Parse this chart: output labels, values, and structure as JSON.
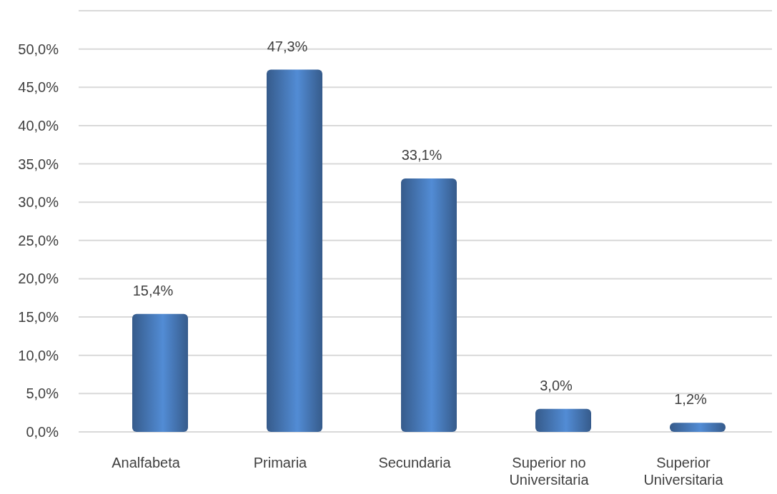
{
  "chart_data": {
    "type": "bar",
    "categories": [
      "Analfabeta",
      "Primaria",
      "Secundaria",
      "Superior no Universitaria",
      "Superior Universitaria"
    ],
    "values": [
      15.4,
      47.3,
      33.1,
      3.0,
      1.2
    ],
    "value_labels": [
      "15,4%",
      "47,3%",
      "33,1%",
      "3,0%",
      "1,2%"
    ],
    "color": "#4a7ebf",
    "ylim": [
      0,
      55
    ],
    "yticks": [
      {
        "value": 0,
        "label": "0,0%"
      },
      {
        "value": 5,
        "label": "5,0%"
      },
      {
        "value": 10,
        "label": "10,0%"
      },
      {
        "value": 15,
        "label": "15,0%"
      },
      {
        "value": 20,
        "label": "20,0%"
      },
      {
        "value": 25,
        "label": "25,0%"
      },
      {
        "value": 30,
        "label": "30,0%"
      },
      {
        "value": 35,
        "label": "35,0%"
      },
      {
        "value": 40,
        "label": "40,0%"
      },
      {
        "value": 45,
        "label": "45,0%"
      },
      {
        "value": 50,
        "label": "50,0%"
      },
      {
        "value": 55,
        "label": null
      }
    ],
    "grid": "y"
  }
}
